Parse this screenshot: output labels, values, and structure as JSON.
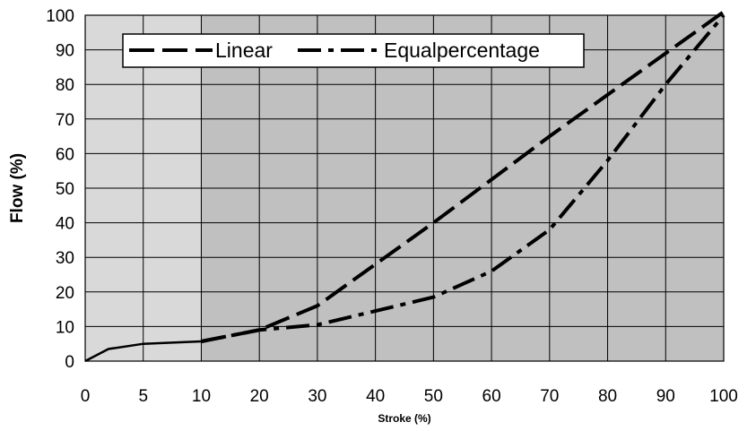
{
  "chart_data": {
    "type": "line",
    "xlabel": "Stroke (%)",
    "ylabel": "Flow (%)",
    "xlim": [
      0,
      100
    ],
    "ylim": [
      0,
      100
    ],
    "x_ticks": [
      0,
      5,
      10,
      20,
      30,
      40,
      50,
      60,
      70,
      80,
      90,
      100
    ],
    "y_ticks": [
      0,
      10,
      20,
      30,
      40,
      50,
      60,
      70,
      80,
      90,
      100
    ],
    "grid": true,
    "legend_position": "top-left",
    "colors": {
      "plot_background": "#c0c0c0",
      "grid": "#000000",
      "series": "#000000",
      "shaded_region": "#d9d9d9"
    },
    "shaded_region": {
      "x": [
        0,
        10
      ]
    },
    "base_series": {
      "x": [
        0,
        2,
        5,
        10
      ],
      "y": [
        0,
        3.5,
        5,
        5.7
      ]
    },
    "series": [
      {
        "name": "Linear",
        "style": "long-dash",
        "x": [
          10,
          20,
          30,
          40,
          50,
          60,
          70,
          80,
          90,
          100
        ],
        "y": [
          5.7,
          9,
          16,
          28,
          40,
          52.5,
          65,
          77,
          89,
          101
        ]
      },
      {
        "name": "Equalpercentage",
        "style": "dash-dot",
        "x": [
          10,
          20,
          30,
          40,
          50,
          60,
          70,
          80,
          90,
          100
        ],
        "y": [
          5.7,
          9,
          10.5,
          14.5,
          18.5,
          26,
          38,
          58,
          80,
          100
        ]
      }
    ]
  }
}
